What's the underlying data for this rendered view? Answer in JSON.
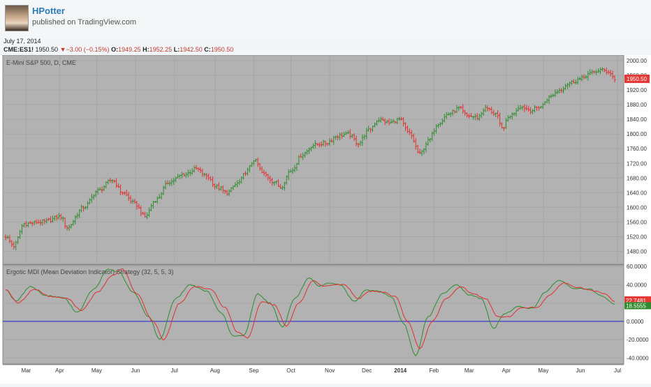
{
  "header": {
    "author": "HPotter",
    "published": "published on TradingView.com",
    "date": "July 17, 2014"
  },
  "quote": {
    "symbol": "CME:ES1!",
    "last": "1950.50",
    "change": "−3.00 (−0.15%)",
    "open_label": "O:",
    "open": "1949.25",
    "high_label": "H:",
    "high": "1952.25",
    "low_label": "L:",
    "low": "1942.50",
    "close_label": "C:",
    "close": "1950.50"
  },
  "colors": {
    "up": "#2e8b2e",
    "down": "#e03030",
    "pane_bg": "#b2b2b2",
    "zero_line": "#2020d0",
    "signal_line": "#2e8b2e",
    "mdi_line": "#e03030"
  },
  "chart_data": [
    {
      "type": "ohlc",
      "title": "E-Mini S&P 500, D, CME",
      "ylim": [
        1460,
        2000
      ],
      "y_ticks": [
        "2000.00",
        "1960.00",
        "1920.00",
        "1880.00",
        "1840.00",
        "1800.00",
        "1760.00",
        "1720.00",
        "1680.00",
        "1640.00",
        "1600.00",
        "1560.00",
        "1520.00",
        "1480.00"
      ],
      "x_ticks": [
        "Mar",
        "Apr",
        "May",
        "Jun",
        "Jul",
        "Aug",
        "Sep",
        "Oct",
        "Nov",
        "Dec",
        "2014",
        "Feb",
        "Mar",
        "Apr",
        "May",
        "Jun",
        "Jul"
      ],
      "last_price_label": "1950.50",
      "close_anchors": [
        {
          "x": 0,
          "y": 1520
        },
        {
          "x": 4,
          "y": 1495
        },
        {
          "x": 9,
          "y": 1555
        },
        {
          "x": 18,
          "y": 1560
        },
        {
          "x": 27,
          "y": 1575
        },
        {
          "x": 30,
          "y": 1545
        },
        {
          "x": 38,
          "y": 1600
        },
        {
          "x": 45,
          "y": 1645
        },
        {
          "x": 52,
          "y": 1675
        },
        {
          "x": 57,
          "y": 1640
        },
        {
          "x": 63,
          "y": 1610
        },
        {
          "x": 68,
          "y": 1575
        },
        {
          "x": 73,
          "y": 1620
        },
        {
          "x": 80,
          "y": 1670
        },
        {
          "x": 87,
          "y": 1690
        },
        {
          "x": 93,
          "y": 1705
        },
        {
          "x": 98,
          "y": 1685
        },
        {
          "x": 103,
          "y": 1655
        },
        {
          "x": 108,
          "y": 1640
        },
        {
          "x": 113,
          "y": 1665
        },
        {
          "x": 118,
          "y": 1700
        },
        {
          "x": 121,
          "y": 1730
        },
        {
          "x": 126,
          "y": 1690
        },
        {
          "x": 131,
          "y": 1670
        },
        {
          "x": 134,
          "y": 1655
        },
        {
          "x": 139,
          "y": 1700
        },
        {
          "x": 145,
          "y": 1745
        },
        {
          "x": 150,
          "y": 1770
        },
        {
          "x": 156,
          "y": 1775
        },
        {
          "x": 162,
          "y": 1795
        },
        {
          "x": 167,
          "y": 1800
        },
        {
          "x": 172,
          "y": 1775
        },
        {
          "x": 177,
          "y": 1810
        },
        {
          "x": 182,
          "y": 1840
        },
        {
          "x": 187,
          "y": 1830
        },
        {
          "x": 192,
          "y": 1840
        },
        {
          "x": 197,
          "y": 1800
        },
        {
          "x": 202,
          "y": 1745
        },
        {
          "x": 206,
          "y": 1780
        },
        {
          "x": 211,
          "y": 1830
        },
        {
          "x": 216,
          "y": 1855
        },
        {
          "x": 221,
          "y": 1870
        },
        {
          "x": 225,
          "y": 1850
        },
        {
          "x": 230,
          "y": 1845
        },
        {
          "x": 234,
          "y": 1870
        },
        {
          "x": 239,
          "y": 1855
        },
        {
          "x": 242,
          "y": 1815
        },
        {
          "x": 246,
          "y": 1850
        },
        {
          "x": 251,
          "y": 1875
        },
        {
          "x": 256,
          "y": 1865
        },
        {
          "x": 261,
          "y": 1875
        },
        {
          "x": 265,
          "y": 1900
        },
        {
          "x": 270,
          "y": 1920
        },
        {
          "x": 275,
          "y": 1940
        },
        {
          "x": 280,
          "y": 1950
        },
        {
          "x": 285,
          "y": 1965
        },
        {
          "x": 290,
          "y": 1975
        },
        {
          "x": 294,
          "y": 1970
        },
        {
          "x": 297,
          "y": 1950
        }
      ]
    },
    {
      "type": "line",
      "title": "Ergotic MDI (Mean Deviation Indicator) Strategy (32, 5, 5, 3)",
      "ylim": [
        -45,
        60
      ],
      "y_ticks": [
        "60.0000",
        "40.0000",
        "20.0000",
        "0.0000",
        "-20.0000",
        "-40.0000"
      ],
      "zero_line": 0,
      "last_labels": [
        "22.7481",
        "18.5555"
      ],
      "mdi_anchors": [
        {
          "x": 0,
          "y": 35
        },
        {
          "x": 6,
          "y": 20
        },
        {
          "x": 14,
          "y": 35
        },
        {
          "x": 22,
          "y": 27
        },
        {
          "x": 30,
          "y": 25
        },
        {
          "x": 37,
          "y": 12
        },
        {
          "x": 45,
          "y": 32
        },
        {
          "x": 52,
          "y": 50
        },
        {
          "x": 57,
          "y": 57
        },
        {
          "x": 64,
          "y": 30
        },
        {
          "x": 72,
          "y": 0
        },
        {
          "x": 77,
          "y": -20
        },
        {
          "x": 85,
          "y": 20
        },
        {
          "x": 92,
          "y": 38
        },
        {
          "x": 100,
          "y": 35
        },
        {
          "x": 107,
          "y": 15
        },
        {
          "x": 113,
          "y": -12
        },
        {
          "x": 118,
          "y": -18
        },
        {
          "x": 125,
          "y": 22
        },
        {
          "x": 131,
          "y": 18
        },
        {
          "x": 137,
          "y": -5
        },
        {
          "x": 143,
          "y": 20
        },
        {
          "x": 150,
          "y": 44
        },
        {
          "x": 155,
          "y": 38
        },
        {
          "x": 160,
          "y": 40
        },
        {
          "x": 165,
          "y": 40
        },
        {
          "x": 172,
          "y": 25
        },
        {
          "x": 178,
          "y": 33
        },
        {
          "x": 184,
          "y": 32
        },
        {
          "x": 190,
          "y": 27
        },
        {
          "x": 196,
          "y": 0
        },
        {
          "x": 202,
          "y": -30
        },
        {
          "x": 208,
          "y": 0
        },
        {
          "x": 215,
          "y": 25
        },
        {
          "x": 222,
          "y": 38
        },
        {
          "x": 228,
          "y": 30
        },
        {
          "x": 234,
          "y": 25
        },
        {
          "x": 240,
          "y": 5
        },
        {
          "x": 245,
          "y": 5
        },
        {
          "x": 252,
          "y": 15
        },
        {
          "x": 259,
          "y": 15
        },
        {
          "x": 265,
          "y": 28
        },
        {
          "x": 272,
          "y": 42
        },
        {
          "x": 279,
          "y": 37
        },
        {
          "x": 287,
          "y": 33
        },
        {
          "x": 292,
          "y": 30
        },
        {
          "x": 297,
          "y": 22
        }
      ],
      "signal_anchors": [
        {
          "x": 0,
          "y": 35
        },
        {
          "x": 5,
          "y": 22
        },
        {
          "x": 12,
          "y": 38
        },
        {
          "x": 20,
          "y": 28
        },
        {
          "x": 28,
          "y": 26
        },
        {
          "x": 35,
          "y": 10
        },
        {
          "x": 43,
          "y": 35
        },
        {
          "x": 50,
          "y": 57
        },
        {
          "x": 55,
          "y": 54
        },
        {
          "x": 62,
          "y": 32
        },
        {
          "x": 70,
          "y": 5
        },
        {
          "x": 75,
          "y": -20
        },
        {
          "x": 83,
          "y": 25
        },
        {
          "x": 90,
          "y": 40
        },
        {
          "x": 98,
          "y": 33
        },
        {
          "x": 105,
          "y": 10
        },
        {
          "x": 111,
          "y": -16
        },
        {
          "x": 116,
          "y": -16
        },
        {
          "x": 123,
          "y": 30
        },
        {
          "x": 129,
          "y": 20
        },
        {
          "x": 135,
          "y": -6
        },
        {
          "x": 141,
          "y": 25
        },
        {
          "x": 148,
          "y": 47
        },
        {
          "x": 153,
          "y": 38
        },
        {
          "x": 158,
          "y": 42
        },
        {
          "x": 163,
          "y": 40
        },
        {
          "x": 170,
          "y": 22
        },
        {
          "x": 176,
          "y": 34
        },
        {
          "x": 182,
          "y": 33
        },
        {
          "x": 188,
          "y": 27
        },
        {
          "x": 194,
          "y": -2
        },
        {
          "x": 200,
          "y": -38
        },
        {
          "x": 206,
          "y": 5
        },
        {
          "x": 213,
          "y": 30
        },
        {
          "x": 220,
          "y": 40
        },
        {
          "x": 226,
          "y": 29
        },
        {
          "x": 232,
          "y": 25
        },
        {
          "x": 238,
          "y": -8
        },
        {
          "x": 243,
          "y": 8
        },
        {
          "x": 250,
          "y": 16
        },
        {
          "x": 257,
          "y": 14
        },
        {
          "x": 263,
          "y": 32
        },
        {
          "x": 270,
          "y": 45
        },
        {
          "x": 277,
          "y": 36
        },
        {
          "x": 285,
          "y": 35
        },
        {
          "x": 290,
          "y": 28
        },
        {
          "x": 297,
          "y": 19
        }
      ]
    }
  ]
}
